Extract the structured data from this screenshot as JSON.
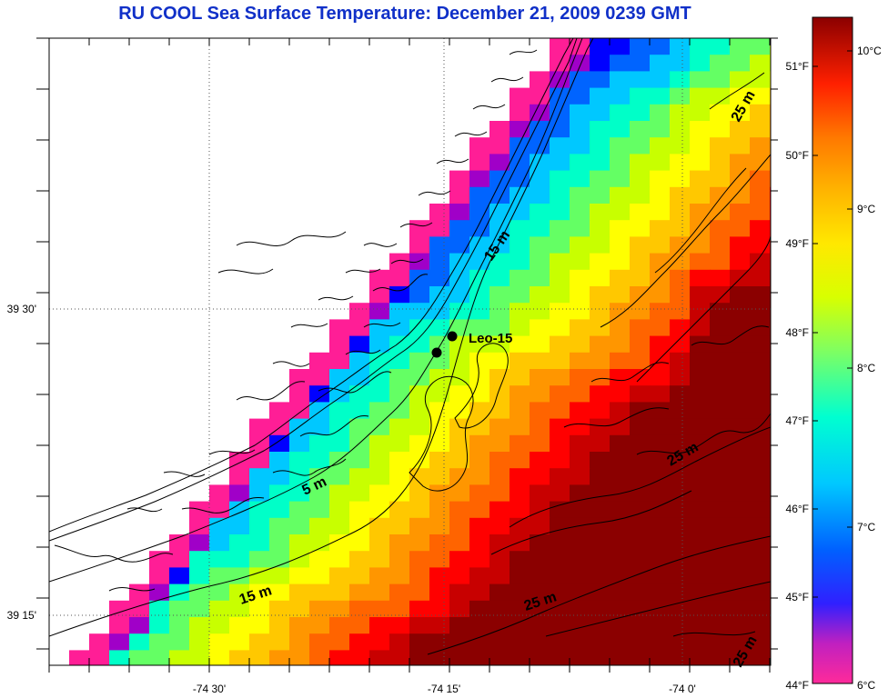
{
  "title": "RU COOL  Sea Surface Temperature:  December 21, 2009 0239 GMT",
  "axes": {
    "x_ticks": [
      "-74 30'",
      "-74 15'",
      "-74 0'"
    ],
    "y_ticks": [
      "39 30'",
      "39 15'"
    ]
  },
  "colorbar": {
    "fahrenheit_labels": [
      "51°F",
      "50°F",
      "49°F",
      "48°F",
      "47°F",
      "46°F",
      "45°F",
      "44°F"
    ],
    "celsius_labels": [
      "10°C",
      "9°C",
      "8°C",
      "7°C",
      "6°C"
    ],
    "colors": [
      "#ff1e96",
      "#a000c8",
      "#0000ff",
      "#0064ff",
      "#00c8ff",
      "#00ffc8",
      "#64ff64",
      "#c8ff00",
      "#ffff00",
      "#ffc800",
      "#ff9600",
      "#ff6400",
      "#ff0000",
      "#c80000",
      "#8b0000"
    ]
  },
  "contours": {
    "labels": [
      "15 m",
      "25 m",
      "5 m",
      "25 m",
      "15 m",
      "25 m",
      "25 m"
    ]
  },
  "station": {
    "label": "Leo-15"
  }
}
